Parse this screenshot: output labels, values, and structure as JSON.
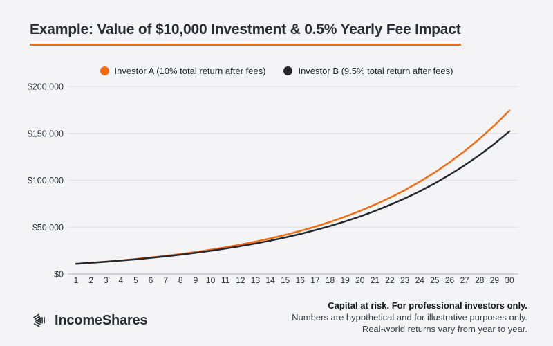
{
  "header": {
    "title": "Example: Value of $10,000 Investment & 0.5% Yearly Fee Impact"
  },
  "legend": {
    "items": [
      {
        "label": "Investor A (10% total return after fees)",
        "color": "#f76b0f"
      },
      {
        "label": "Investor B (9.5% total return after fees)",
        "color": "#23292f"
      }
    ]
  },
  "chart_data": {
    "type": "line",
    "title": "Example: Value of $10,000 Investment & 0.5% Yearly Fee Impact",
    "x": [
      1,
      2,
      3,
      4,
      5,
      6,
      7,
      8,
      9,
      10,
      11,
      12,
      13,
      14,
      15,
      16,
      17,
      18,
      19,
      20,
      21,
      22,
      23,
      24,
      25,
      26,
      27,
      28,
      29,
      30
    ],
    "xlabel": "",
    "ylabel": "",
    "ylim": [
      0,
      200000
    ],
    "yticks": [
      0,
      50000,
      100000,
      150000,
      200000
    ],
    "ytick_labels": [
      "$0",
      "$50,000",
      "$100,000",
      "$150,000",
      "$200,000"
    ],
    "grid": "horizontal",
    "legend_position": "top",
    "series": [
      {
        "name": "Investor A (10% total return after fees)",
        "color": "#f76b0f",
        "values": [
          11000,
          12100,
          13310,
          14641,
          16105,
          17716,
          19487,
          21436,
          23579,
          25937,
          28531,
          31384,
          34523,
          37975,
          41772,
          45950,
          50545,
          55599,
          61159,
          67275,
          74002,
          81403,
          89543,
          98497,
          108347,
          119182,
          131100,
          144210,
          158631,
          174494
        ]
      },
      {
        "name": "Investor B (9.5% total return after fees)",
        "color": "#23292f",
        "values": [
          10950,
          11990,
          13129,
          14377,
          15742,
          17238,
          18876,
          20669,
          22632,
          24782,
          27137,
          29715,
          32537,
          35629,
          39013,
          42719,
          46777,
          51222,
          56088,
          61416,
          67251,
          73640,
          80635,
          88296,
          96684,
          105869,
          115927,
          126940,
          138999,
          152203
        ]
      }
    ],
    "colors": {
      "grid": "#e3e4e7",
      "axis": "#c7c9cc",
      "tick_text": "#2a2f35"
    }
  },
  "footer": {
    "logo_text": "IncomeShares",
    "disclaimer_line1": "Capital at risk. For professional investors only.",
    "disclaimer_line2": "Numbers are hypothetical and for illustrative purposes only.",
    "disclaimer_line3": "Real-world returns vary from year to year."
  }
}
